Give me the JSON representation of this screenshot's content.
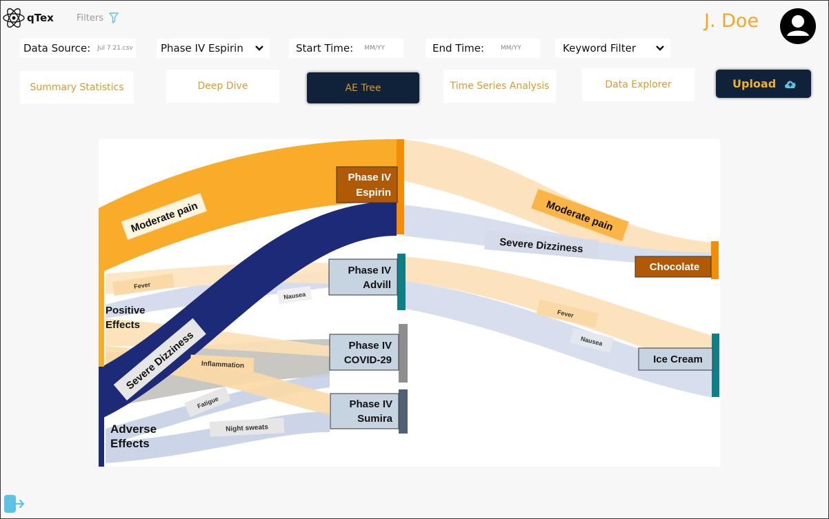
{
  "app": {
    "name": "qTex",
    "filters_label": "Filters"
  },
  "user": {
    "name": "J. Doe"
  },
  "controls": {
    "data_source_label": "Data Source:",
    "data_source_value": "Jul 7 21.csv",
    "dataset_select": "Phase IV Espirin",
    "start_time_label": "Start Time:",
    "start_time_placeholder": "MM/YY",
    "end_time_label": "End Time:",
    "end_time_placeholder": "MM/YY",
    "keyword_filter": "Keyword Filter"
  },
  "tabs": [
    {
      "label": "Summary Statistics",
      "active": false
    },
    {
      "label": "Deep Dive",
      "active": false
    },
    {
      "label": "AE Tree",
      "active": true
    },
    {
      "label": "Time Series Analysis",
      "active": false
    },
    {
      "label": "Data Explorer",
      "active": false
    }
  ],
  "upload": {
    "label": "Upload"
  },
  "colors": {
    "accent_orange": "#f5a524",
    "navy": "#0f2239",
    "flow_navy": "#1c2a78",
    "teal": "#0e7f86",
    "node_brown": "#b05a08",
    "cloud_blue": "#5ec3e0"
  },
  "sankey": {
    "left_nodes": {
      "positive": "Positive Effects",
      "adverse": "Adverse Effects"
    },
    "mid_nodes": [
      "Phase IV Espirin",
      "Phase IV Advill",
      "Phase IV COVID-29",
      "Phase IV Sumira"
    ],
    "right_nodes": [
      "Chocolate",
      "Ice Cream"
    ],
    "flow_labels": {
      "moderate_pain_left": "Moderate pain",
      "severe_dizziness_left": "Severe Dizziness",
      "fever_left": "Fever",
      "nausea_left": "Nausea",
      "inflammation": "Inflammation",
      "fatigue": "Fatigue",
      "night_sweats": "Night sweats",
      "moderate_pain_right": "Moderate pain",
      "severe_dizziness_right": "Severe Dizziness",
      "fever_right": "Fever",
      "nausea_right": "Nausea"
    }
  }
}
